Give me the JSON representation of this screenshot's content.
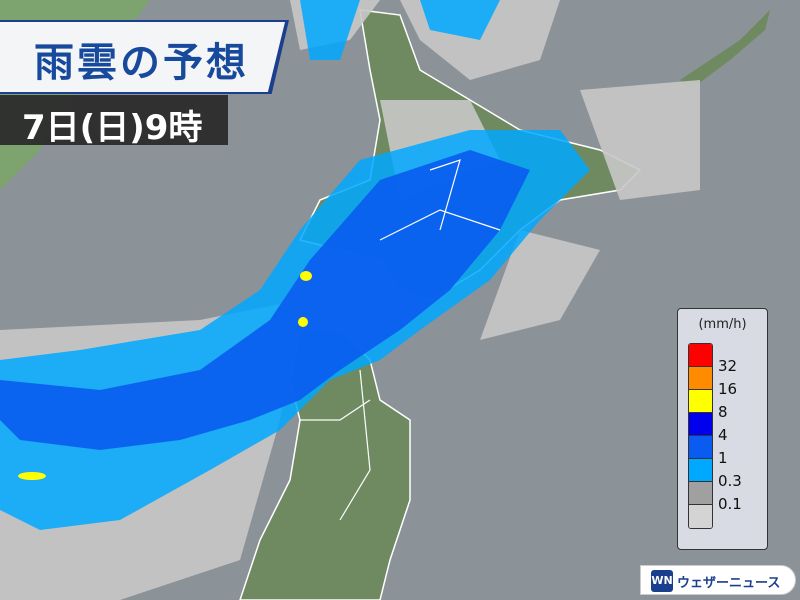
{
  "header": {
    "title": "雨雲の予想",
    "datetime": "7日(日)9時"
  },
  "legend": {
    "unit": "(mm/h)",
    "levels": [
      {
        "color": "#ff0000",
        "label": ""
      },
      {
        "color": "#ff8c00",
        "label": "32"
      },
      {
        "color": "#ffff00",
        "label": "16"
      },
      {
        "color": "#0000ee",
        "label": "8"
      },
      {
        "color": "#0a5cf0",
        "label": "4"
      },
      {
        "color": "#00a8ff",
        "label": "1"
      },
      {
        "color": "#a0a0a0",
        "label": "0.3"
      },
      {
        "color": "#d4d4d4",
        "label": "0.1"
      }
    ]
  },
  "brand": {
    "mark": "WN",
    "name": "ウェザーニュース",
    "color": "#1b3f8f"
  },
  "map": {
    "land_color": "#6f8a60",
    "sea_color": "#8b9298",
    "region": "Hokkaido / Tohoku"
  }
}
